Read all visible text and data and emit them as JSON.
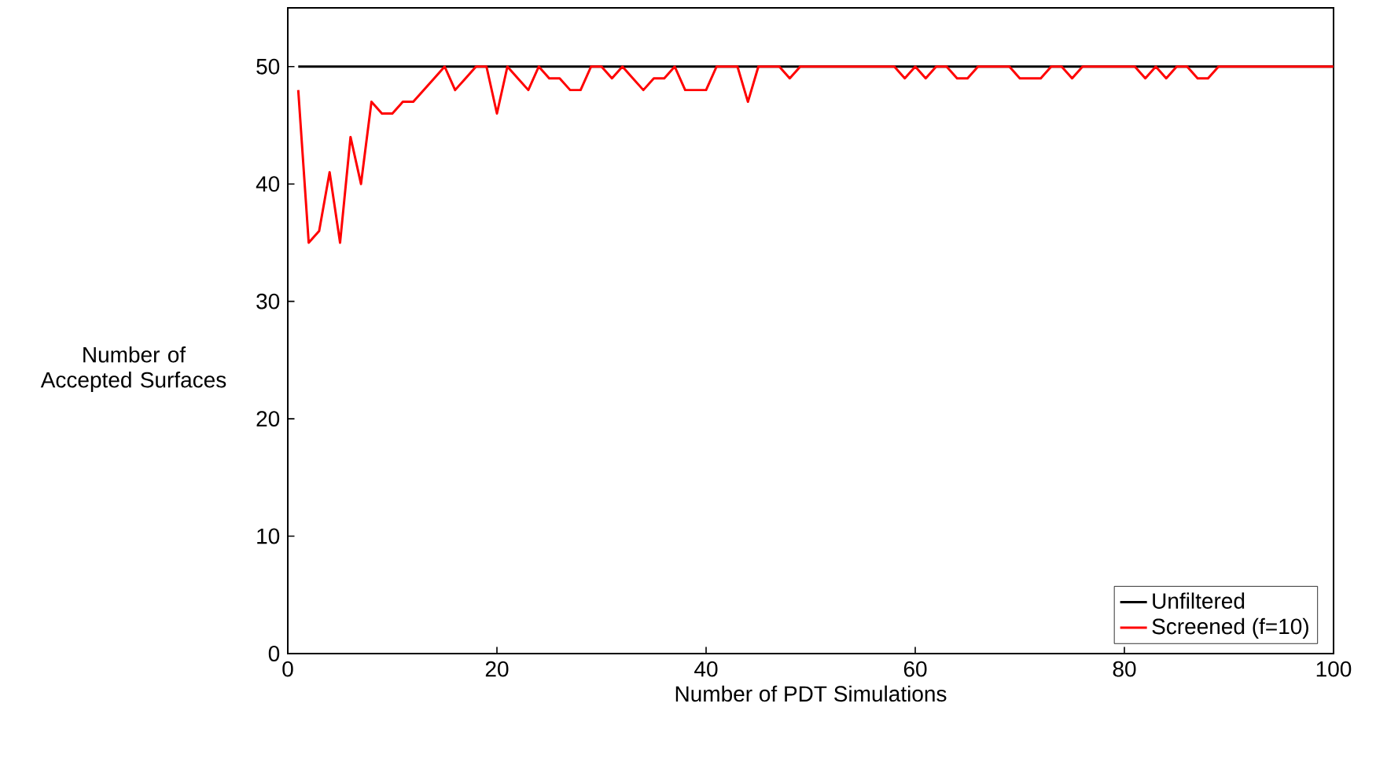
{
  "chart_data": {
    "type": "line",
    "xlabel": "Number of PDT Simulations",
    "ylabel": "Number of Accepted Surfaces",
    "x": [
      1,
      2,
      3,
      4,
      5,
      6,
      7,
      8,
      9,
      10,
      11,
      12,
      13,
      14,
      15,
      16,
      17,
      18,
      19,
      20,
      21,
      22,
      23,
      24,
      25,
      26,
      27,
      28,
      29,
      30,
      31,
      32,
      33,
      34,
      35,
      36,
      37,
      38,
      39,
      40,
      41,
      42,
      43,
      44,
      45,
      46,
      47,
      48,
      49,
      50,
      51,
      52,
      53,
      54,
      55,
      56,
      57,
      58,
      59,
      60,
      61,
      62,
      63,
      64,
      65,
      66,
      67,
      68,
      69,
      70,
      71,
      72,
      73,
      74,
      75,
      76,
      77,
      78,
      79,
      80,
      81,
      82,
      83,
      84,
      85,
      86,
      87,
      88,
      89,
      90,
      91,
      92,
      93,
      94,
      95,
      96,
      97,
      98,
      99,
      100
    ],
    "series": [
      {
        "name": "Unfiltered",
        "color": "#000000",
        "x": [
          1,
          100
        ],
        "values": [
          50,
          50
        ]
      },
      {
        "name": "Screened (f=10)",
        "color": "#ff0000",
        "values": [
          48,
          35,
          36,
          41,
          35,
          44,
          40,
          47,
          46,
          46,
          47,
          47,
          48,
          49,
          50,
          48,
          49,
          50,
          50,
          46,
          50,
          49,
          48,
          50,
          49,
          49,
          48,
          48,
          50,
          50,
          49,
          50,
          49,
          48,
          49,
          49,
          50,
          48,
          48,
          48,
          50,
          50,
          50,
          47,
          50,
          50,
          50,
          49,
          50,
          50,
          50,
          50,
          50,
          50,
          50,
          50,
          50,
          50,
          49,
          50,
          49,
          50,
          50,
          49,
          49,
          50,
          50,
          50,
          50,
          49,
          49,
          49,
          50,
          50,
          49,
          50,
          50,
          50,
          50,
          50,
          50,
          49,
          50,
          49,
          50,
          50,
          49,
          49,
          50,
          50,
          50,
          50,
          50,
          50,
          50,
          50,
          50,
          50,
          50,
          50
        ]
      }
    ],
    "xlim": [
      0,
      100
    ],
    "ylim": [
      0,
      55
    ],
    "xticks": [
      0,
      20,
      40,
      60,
      80,
      100
    ],
    "yticks": [
      0,
      10,
      20,
      30,
      40,
      50
    ],
    "grid": false,
    "legend": "bottom right",
    "marker": "none",
    "line_style": "solid"
  }
}
